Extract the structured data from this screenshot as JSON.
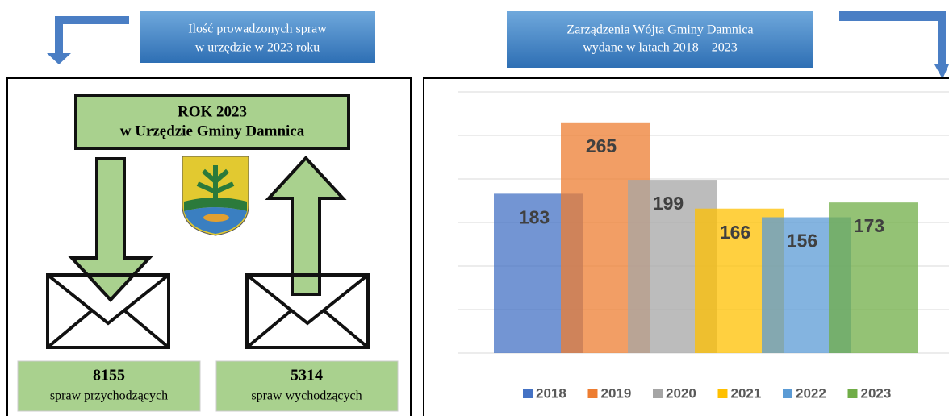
{
  "headers": {
    "left": [
      "Ilość prowadzonych spraw",
      "w urzędzie w 2023 roku"
    ]
  },
  "infographic": {
    "title": [
      "ROK 2023",
      "w Urzędzie Gminy Damnica"
    ],
    "incoming": {
      "count": 8155,
      "label": "spraw przychodzących"
    },
    "outgoing": {
      "count": 5314,
      "label": "spraw wychodzących"
    }
  },
  "chart_data": {
    "type": "bar",
    "title": [
      "Zarządzenia Wójta Gminy Damnica",
      "wydane w latach 2018 – 2023"
    ],
    "series": [
      {
        "name": "2018",
        "color": "#4472c4",
        "values": [
          183
        ]
      },
      {
        "name": "2019",
        "color": "#ed7d31",
        "values": [
          265
        ]
      },
      {
        "name": "2020",
        "color": "#a5a5a5",
        "values": [
          199
        ]
      },
      {
        "name": "2021",
        "color": "#ffc000",
        "values": [
          166
        ]
      },
      {
        "name": "2022",
        "color": "#5b9bd5",
        "values": [
          156
        ]
      },
      {
        "name": "2023",
        "color": "#70ad47",
        "values": [
          173
        ]
      }
    ],
    "ylim": [
      0,
      300
    ],
    "yticks": [
      0,
      50,
      100,
      150,
      200,
      250,
      300
    ],
    "grid": true,
    "legend": "bottom"
  }
}
